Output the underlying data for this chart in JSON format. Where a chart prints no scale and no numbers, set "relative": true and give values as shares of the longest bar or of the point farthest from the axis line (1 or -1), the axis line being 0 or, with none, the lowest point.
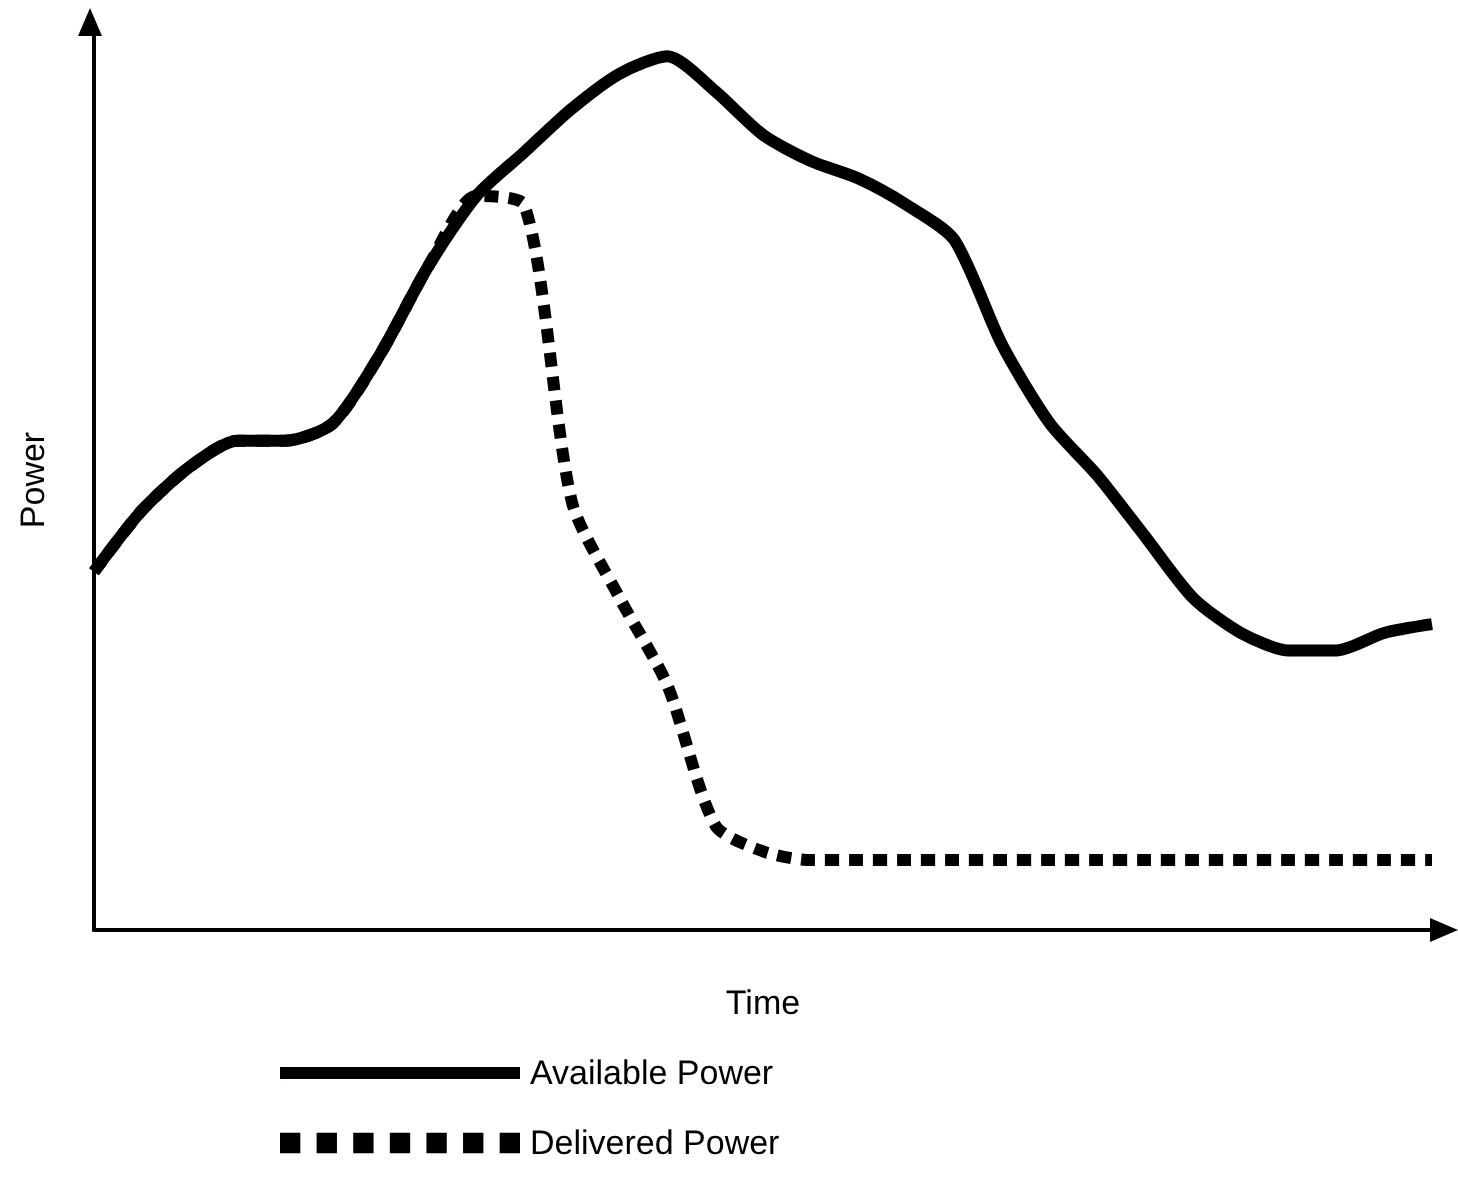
{
  "chart_data": {
    "type": "line",
    "relative": true,
    "xlabel": "Time",
    "ylabel": "Power",
    "legend": "bottom",
    "grid": false,
    "marker": "none",
    "categories": [
      null,
      null,
      null,
      null,
      null,
      null,
      null,
      null,
      null,
      null,
      null,
      null,
      null,
      null,
      null,
      null,
      null,
      null,
      null,
      null,
      null,
      null,
      null,
      null,
      null,
      null,
      null,
      null,
      null
    ],
    "series": [
      {
        "name": "Available Power",
        "color": "#000000",
        "line_style": "solid",
        "values": [
          0.41,
          0.48,
          0.53,
          0.56,
          0.56,
          0.58,
          0.66,
          0.76,
          0.84,
          0.89,
          0.94,
          0.98,
          1,
          0.96,
          0.91,
          0.88,
          0.86,
          0.83,
          0.79,
          0.67,
          0.58,
          0.52,
          0.45,
          0.38,
          0.34,
          0.32,
          0.32,
          0.34,
          0.35
        ]
      },
      {
        "name": "Delivered Power",
        "color": "#000000",
        "line_style": "dotted",
        "values": [
          0.41,
          0.48,
          0.53,
          0.56,
          0.56,
          0.58,
          0.66,
          0.76,
          0.84,
          0.83,
          0.49,
          0.38,
          0.28,
          0.12,
          0.09,
          0.08,
          0.08,
          0.08,
          0.08,
          0.08,
          0.08,
          0.08,
          0.08,
          0.08,
          0.08,
          0.08,
          0.08,
          0.08,
          0.08
        ]
      }
    ]
  }
}
